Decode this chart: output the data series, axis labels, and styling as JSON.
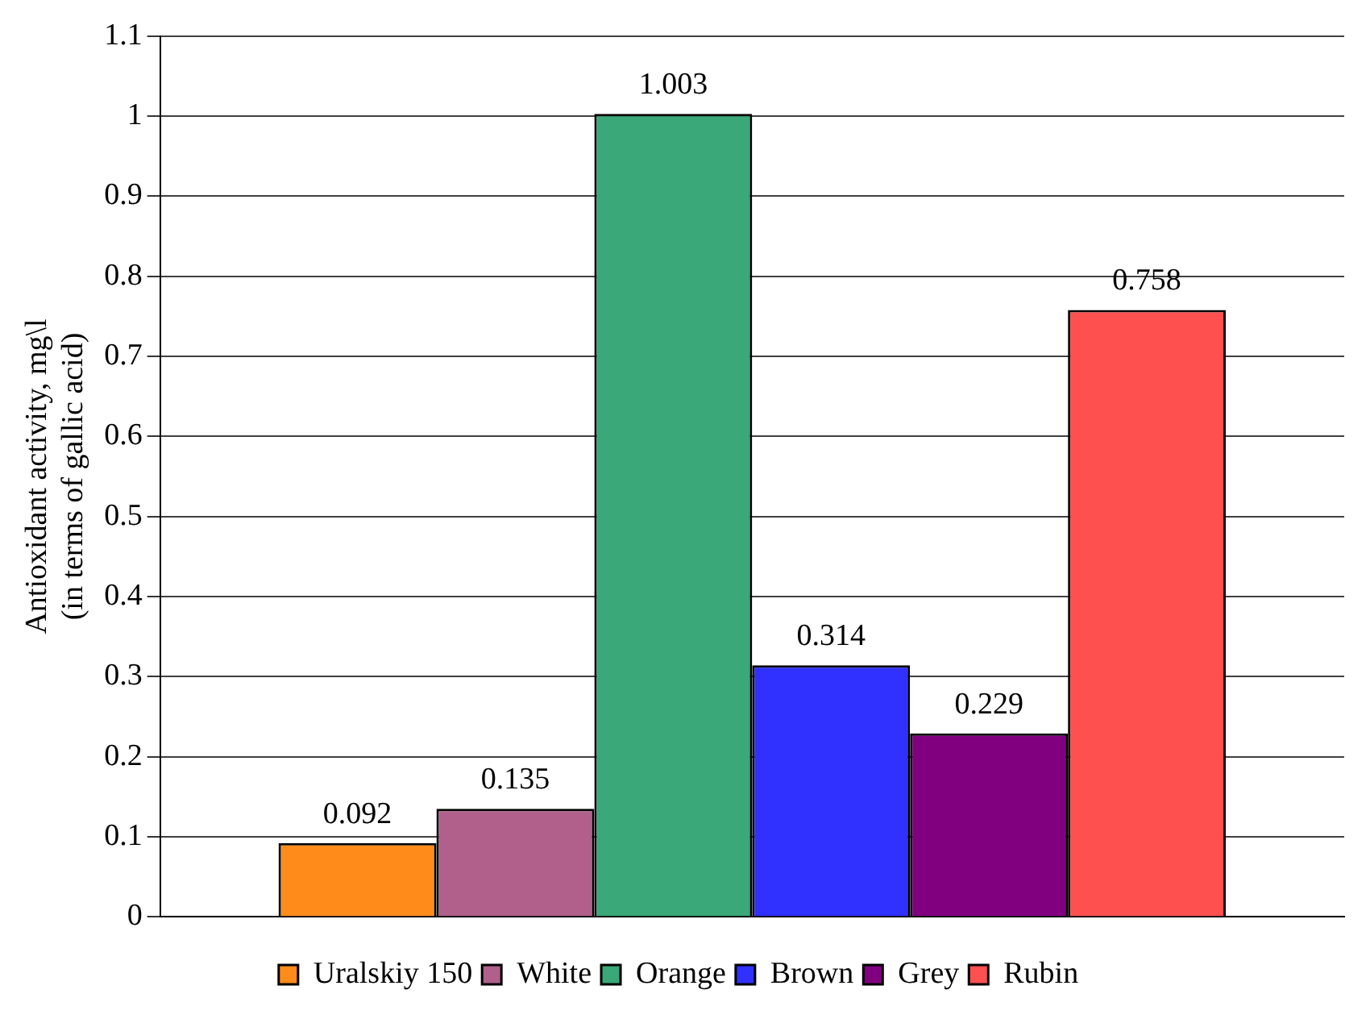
{
  "chart_data": {
    "type": "bar",
    "ylabel": "Antioxidant activity, mg\\l\n(in terms of gallic acid)",
    "categories": [
      null
    ],
    "series": [
      {
        "name": "Uralskiy 150",
        "color": "#ff8c1a",
        "values": [
          0.092
        ]
      },
      {
        "name": "White",
        "color": "#b0608a",
        "values": [
          0.135
        ]
      },
      {
        "name": "Orange",
        "color": "#3aa878",
        "values": [
          1.003
        ]
      },
      {
        "name": "Brown",
        "color": "#3030ff",
        "values": [
          0.314
        ]
      },
      {
        "name": "Grey",
        "color": "#800080",
        "values": [
          0.229
        ]
      },
      {
        "name": "Rubin",
        "color": "#ff5050",
        "values": [
          0.758
        ]
      }
    ],
    "ylim": [
      0,
      1.1
    ],
    "yticks": [
      0,
      0.1,
      0.2,
      0.3,
      0.4,
      0.5,
      0.6,
      0.7,
      0.8,
      0.9,
      1,
      1.1
    ],
    "grid": "y",
    "legend": "bottom",
    "data_labels": true
  }
}
